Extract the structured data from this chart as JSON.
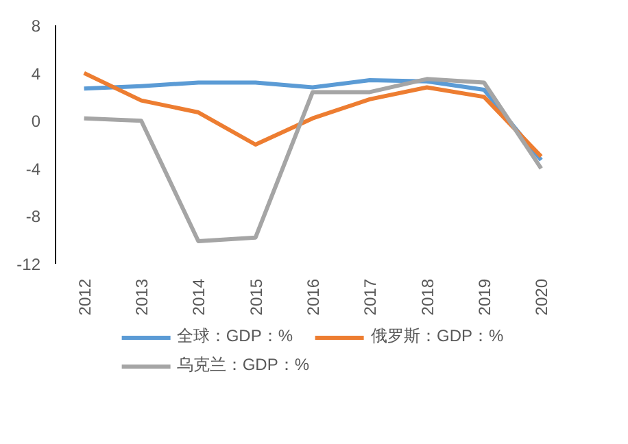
{
  "chart_data": {
    "type": "line",
    "categories": [
      "2012",
      "2013",
      "2014",
      "2015",
      "2016",
      "2017",
      "2018",
      "2019",
      "2020"
    ],
    "ylim": [
      -12,
      8
    ],
    "yticks": [
      -12,
      -8,
      -4,
      0,
      4,
      8
    ],
    "grid": false,
    "legend": "bottom",
    "series": [
      {
        "name": "全球：GDP：%",
        "color": "#5b9bd5",
        "values": [
          2.7,
          2.9,
          3.2,
          3.2,
          2.8,
          3.4,
          3.3,
          2.6,
          -3.3
        ]
      },
      {
        "name": "俄罗斯：GDP：%",
        "color": "#ed7d31",
        "values": [
          4.0,
          1.7,
          0.7,
          -2.0,
          0.2,
          1.8,
          2.8,
          2.0,
          -3.0
        ]
      },
      {
        "name": "乌克兰：GDP：%",
        "color": "#a5a5a5",
        "values": [
          0.2,
          0.0,
          -10.1,
          -9.8,
          2.4,
          2.4,
          3.5,
          3.2,
          -4.0
        ]
      }
    ]
  }
}
